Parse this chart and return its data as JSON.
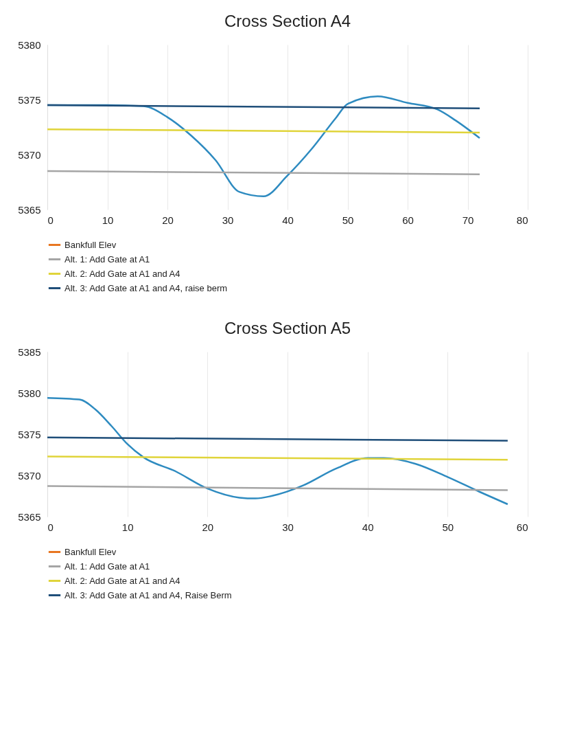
{
  "chart_data": [
    {
      "type": "line",
      "title": "Cross Section A4",
      "xlim": [
        0,
        80
      ],
      "xticks": [
        0,
        10,
        20,
        30,
        40,
        50,
        60,
        70,
        80
      ],
      "ylim": [
        5365,
        5380
      ],
      "yticks": [
        5365,
        5370,
        5375,
        5380
      ],
      "grid": "x",
      "legend": "bottom",
      "series": [
        {
          "color": "#2e8bc0",
          "x": [
            0,
            10,
            16,
            20,
            24,
            28,
            32,
            36,
            40,
            44,
            48,
            50,
            55,
            60,
            65,
            68,
            72
          ],
          "values": [
            5374.5,
            5374.5,
            5374.4,
            5373.4,
            5371.7,
            5369.5,
            5366.6,
            5366.2,
            5368.1,
            5370.5,
            5373.3,
            5374.6,
            5375.3,
            5374.7,
            5374.1,
            5373.1,
            5371.5
          ]
        },
        {
          "name": "Bankfull Elev",
          "color": "#e87722"
        },
        {
          "name": "Alt. 1: Add Gate at A1",
          "color": "#a5a5a5",
          "x": [
            0,
            72
          ],
          "values": [
            5368.5,
            5368.2
          ]
        },
        {
          "name": "Alt. 2: Add Gate at A1 and A4",
          "color": "#e0d43a",
          "x": [
            0,
            72
          ],
          "values": [
            5372.3,
            5372.0
          ]
        },
        {
          "name": "Alt. 3: Add Gate at A1 and A4, raise berm",
          "color": "#1f4e79",
          "x": [
            0,
            72
          ],
          "values": [
            5374.5,
            5374.2
          ]
        }
      ]
    },
    {
      "type": "line",
      "title": "Cross Section A5",
      "xlim": [
        0,
        60
      ],
      "xticks": [
        0,
        10,
        20,
        30,
        40,
        50,
        60
      ],
      "ylim": [
        5365,
        5385
      ],
      "yticks": [
        5365,
        5370,
        5375,
        5380,
        5385
      ],
      "grid": "x",
      "legend": "bottom",
      "series": [
        {
          "color": "#2e8bc0",
          "x": [
            0,
            4,
            6,
            8,
            10,
            12,
            16,
            20,
            24,
            26,
            28,
            32,
            36,
            40,
            42,
            46,
            50,
            54,
            57.5
          ],
          "values": [
            5379.4,
            5379.2,
            5378,
            5376,
            5373.8,
            5372.2,
            5370.5,
            5368.4,
            5367.3,
            5367.2,
            5367.5,
            5368.8,
            5370.8,
            5372.1,
            5372.1,
            5371.4,
            5369.8,
            5368.0,
            5366.5
          ]
        },
        {
          "name": "Bankfull Elev",
          "color": "#e87722"
        },
        {
          "name": "Alt. 1: Add Gate at A1",
          "color": "#a5a5a5",
          "x": [
            0,
            57.5
          ],
          "values": [
            5368.7,
            5368.2
          ]
        },
        {
          "name": "Alt. 2: Add Gate at A1 and A4",
          "color": "#e0d43a",
          "x": [
            0,
            57.5
          ],
          "values": [
            5372.3,
            5371.9
          ]
        },
        {
          "name": "Alt. 3: Add Gate at A1 and A4, Raise Berm",
          "color": "#1f4e79",
          "x": [
            0,
            57.5
          ],
          "values": [
            5374.6,
            5374.2
          ]
        }
      ]
    }
  ]
}
